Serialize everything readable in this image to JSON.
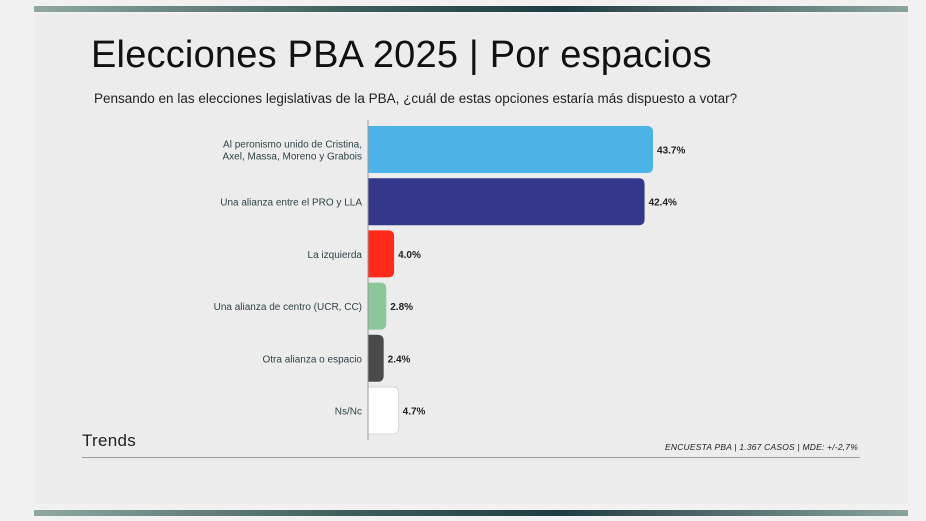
{
  "header": {
    "title": "Elecciones PBA 2025 | Por espacios",
    "subtitle": "Pensando en las elecciones legislativas de la PBA, ¿cuál de estas opciones estaría más dispuesto a votar?"
  },
  "footer": {
    "brand": "Trends",
    "source": "ENCUESTA PBA | 1.367 CASOS | MDE: +/-2,7%"
  },
  "chart_data": {
    "type": "bar",
    "orientation": "horizontal",
    "title": "Elecciones PBA 2025 | Por espacios",
    "categories": [
      [
        "Al peronismo unido de Cristina,",
        "Axel, Massa, Moreno y Grabois"
      ],
      [
        "Una alianza entre el PRO y LLA"
      ],
      [
        "La izquierda"
      ],
      [
        "Una alianza de centro (UCR, CC)"
      ],
      [
        "Otra alianza o espacio"
      ],
      [
        "Ns/Nc"
      ]
    ],
    "values": [
      43.7,
      42.4,
      4.0,
      2.8,
      2.4,
      4.7
    ],
    "value_labels": [
      "43.7%",
      "42.4%",
      "4.0%",
      "2.8%",
      "2.4%",
      "4.7%"
    ],
    "colors": [
      "#4cb3e6",
      "#35378a",
      "#ff2a1a",
      "#8cc79b",
      "#4a4a4a",
      "#ffffff"
    ],
    "xlim": [
      0,
      44
    ],
    "grid": false,
    "legend": "none"
  }
}
